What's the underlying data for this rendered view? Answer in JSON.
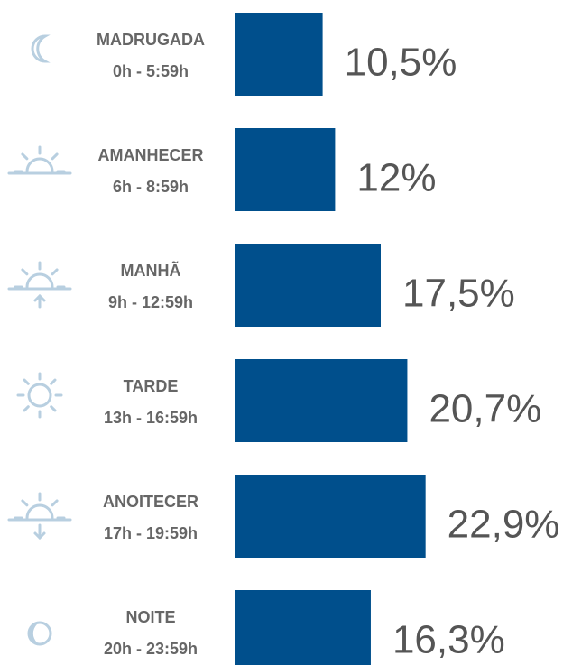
{
  "chart_data": {
    "type": "bar",
    "orientation": "horizontal",
    "categories": [
      "MADRUGADA",
      "AMANHECER",
      "MANHÃ",
      "TARDE",
      "ANOITECER",
      "NOITE"
    ],
    "time_ranges": [
      "0h - 5:59h",
      "6h - 8:59h",
      "9h - 12:59h",
      "13h - 16:59h",
      "17h - 19:59h",
      "20h - 23:59h"
    ],
    "values": [
      10.5,
      12,
      17.5,
      20.7,
      22.9,
      16.3
    ],
    "value_labels": [
      "10,5%",
      "12%",
      "17,5%",
      "20,7%",
      "22,9%",
      "16,3%"
    ],
    "color": "#004f8c"
  }
}
